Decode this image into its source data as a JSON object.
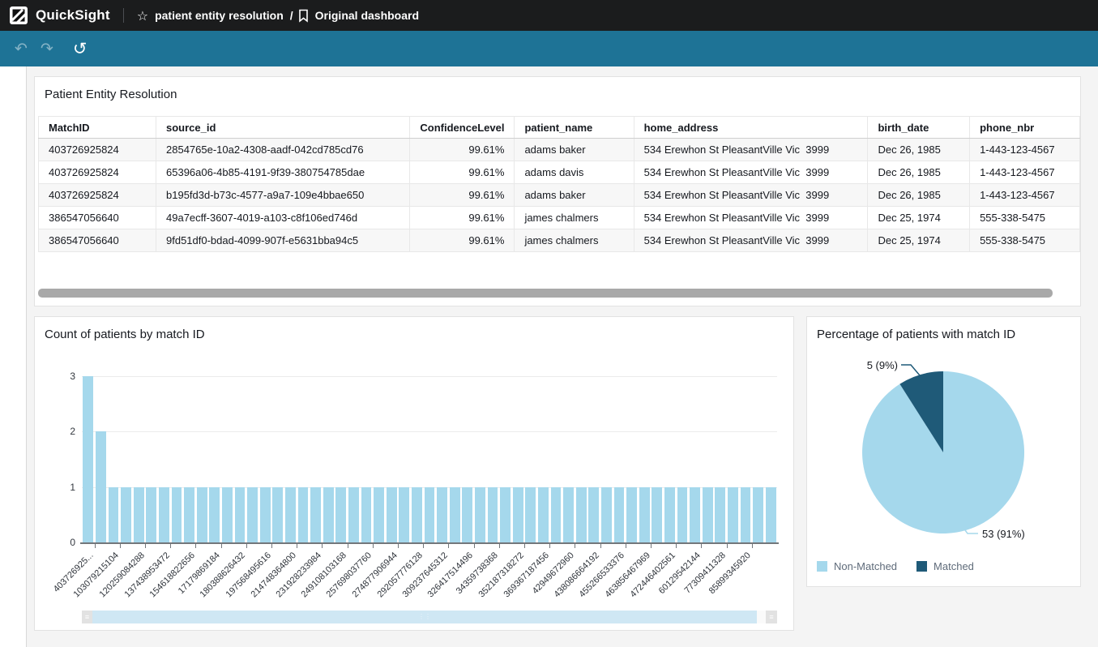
{
  "app": {
    "name": "QuickSight"
  },
  "breadcrumb": {
    "analysis_name": "patient entity resolution",
    "separator": "/",
    "dashboard_name": "Original dashboard"
  },
  "toolbar": {
    "undo_icon": "↶",
    "redo_icon": "↷",
    "reset_icon": "↺"
  },
  "colors": {
    "topbar_bg": "#1b1c1d",
    "toolbar_bg": "#1e7396",
    "page_bg": "#f4f4f4",
    "light_blue": "#a5d8ec",
    "dark_blue": "#1f5a78",
    "table_stripe": "#f7f7f7",
    "scrollbar_gray": "#a9a9a9"
  },
  "table_card": {
    "title": "Patient Entity Resolution",
    "columns": [
      {
        "label": "MatchID",
        "align": "left"
      },
      {
        "label": "source_id",
        "align": "left"
      },
      {
        "label": "ConfidenceLevel",
        "align": "right"
      },
      {
        "label": "patient_name",
        "align": "left"
      },
      {
        "label": "home_address",
        "align": "left"
      },
      {
        "label": "birth_date",
        "align": "left"
      },
      {
        "label": "phone_nbr",
        "align": "left"
      }
    ],
    "rows": [
      [
        "403726925824",
        "2854765e-10a2-4308-aadf-042cd785cd76",
        "99.61%",
        "adams baker",
        "534 Erewhon St PleasantVille Vic  3999",
        "Dec 26, 1985",
        "1-443-123-4567"
      ],
      [
        "403726925824",
        "65396a06-4b85-4191-9f39-380754785dae",
        "99.61%",
        "adams davis",
        "534 Erewhon St PleasantVille Vic  3999",
        "Dec 26, 1985",
        "1-443-123-4567"
      ],
      [
        "403726925824",
        "b195fd3d-b73c-4577-a9a7-109e4bbae650",
        "99.61%",
        "adams baker",
        "534 Erewhon St PleasantVille Vic  3999",
        "Dec 26, 1985",
        "1-443-123-4567"
      ],
      [
        "386547056640",
        "49a7ecff-3607-4019-a103-c8f106ed746d",
        "99.61%",
        "james chalmers",
        "534 Erewhon St PleasantVille Vic  3999",
        "Dec 25, 1974",
        "555-338-5475"
      ],
      [
        "386547056640",
        "9fd51df0-bdad-4099-907f-e5631bba94c5",
        "99.61%",
        "james chalmers",
        "534 Erewhon St PleasantVille Vic  3999",
        "Dec 25, 1974",
        "555-338-5475"
      ]
    ]
  },
  "chart_data": [
    {
      "type": "bar",
      "title": "Count of patients by match ID",
      "bar_color": "#a5d8ec",
      "ylim": [
        0,
        3
      ],
      "yticks": [
        0,
        1,
        2,
        3
      ],
      "grid": true,
      "values": [
        3,
        2,
        1,
        1,
        1,
        1,
        1,
        1,
        1,
        1,
        1,
        1,
        1,
        1,
        1,
        1,
        1,
        1,
        1,
        1,
        1,
        1,
        1,
        1,
        1,
        1,
        1,
        1,
        1,
        1,
        1,
        1,
        1,
        1,
        1,
        1,
        1,
        1,
        1,
        1,
        1,
        1,
        1,
        1,
        1,
        1,
        1,
        1,
        1,
        1,
        1,
        1,
        1,
        1,
        1
      ],
      "x_tick_labels": [
        "403726925...",
        "103079215104",
        "120259084288",
        "137438953472",
        "154618822656",
        "17179869184",
        "180388626432",
        "197568495616",
        "214748364800",
        "231928233984",
        "249108103168",
        "257698037760",
        "274877906944",
        "292057776128",
        "309237645312",
        "326417514496",
        "34359738368",
        "352187318272",
        "369367187456",
        "42949672960",
        "438086664192",
        "455266533376",
        "463856467969",
        "472446402561",
        "60129542144",
        "77309411328",
        "85899345920"
      ]
    },
    {
      "type": "pie",
      "title": "Percentage of patients with match ID",
      "legend_position": "bottom",
      "slices": [
        {
          "label": "Non-Matched",
          "value": 53,
          "pct": 91,
          "data_label": "53 (91%)",
          "color": "#a5d8ec"
        },
        {
          "label": "Matched",
          "value": 5,
          "pct": 9,
          "data_label": "5 (9%)",
          "color": "#1f5a78"
        }
      ]
    }
  ]
}
